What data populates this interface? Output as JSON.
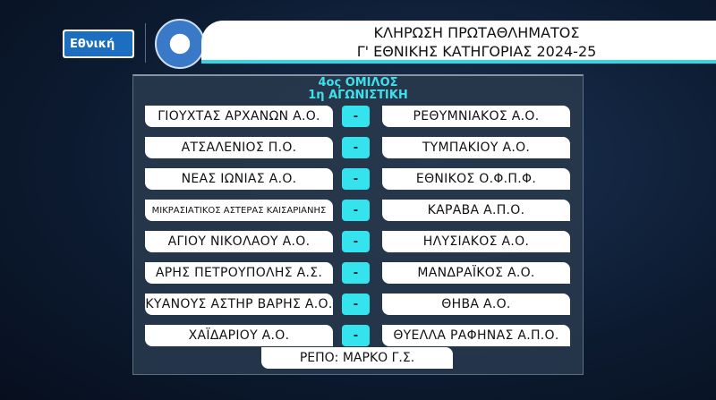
{
  "logo": {
    "label": "Εθνική"
  },
  "header": {
    "line1": "ΚΛΗΡΩΣΗ ΠΡΩΤΑΘΛΗΜΑΤΟΣ",
    "line2": "Γ' ΕΘΝΙΚΗΣ ΚΑΤΗΓΟΡΙΑΣ 2024-25"
  },
  "group": {
    "name": "4ος ΟΜΙΛΟΣ",
    "round": "1η ΑΓΩΝΙΣΤΙΚΗ"
  },
  "matches": [
    {
      "home": "ΓΙΟΥΧΤΑΣ ΑΡΧΑΝΩΝ Α.Ο.",
      "sep": "-",
      "away": "ΡΕΘΥΜΝΙΑΚΟΣ Α.Ο."
    },
    {
      "home": "ΑΤΣΑΛΕΝΙΟΣ Π.Ο.",
      "sep": "-",
      "away": "ΤΥΜΠΑΚΙΟΥ Α.Ο."
    },
    {
      "home": "ΝΕΑΣ ΙΩΝΙΑΣ Α.Ο.",
      "sep": "-",
      "away": "ΕΘΝΙΚΟΣ Ο.Φ.Π.Φ."
    },
    {
      "home": "ΜΙΚΡΑΣΙΑΤΙΚΟΣ ΑΣΤΕΡΑΣ ΚΑΙΣΑΡΙΑΝΗΣ",
      "sep": "-",
      "away": "ΚΑΡΑΒΑ Α.Π.Ο."
    },
    {
      "home": "ΑΓΙΟΥ ΝΙΚΟΛΑΟΥ Α.Ο.",
      "sep": "-",
      "away": "ΗΛΥΣΙΑΚΟΣ Α.Ο."
    },
    {
      "home": "ΑΡΗΣ ΠΕΤΡΟΥΠΟΛΗΣ Α.Σ.",
      "sep": "-",
      "away": "ΜΑΝΔΡΑΪΚΟΣ Α.Ο."
    },
    {
      "home": "ΚΥΑΝΟΥΣ ΑΣΤΗΡ ΒΑΡΗΣ Α.Ο.",
      "sep": "-",
      "away": "ΘΗΒΑ Α.Ο."
    },
    {
      "home": "ΧΑΪΔΑΡΙΟΥ Α.Ο.",
      "sep": "-",
      "away": "ΘΥΕΛΛΑ ΡΑΦΗΝΑΣ Α.Π.Ο."
    }
  ],
  "repo": "ΡΕΠΟ: ΜΑΡΚΟ Γ.Σ.",
  "colors": {
    "accent": "#35e3ef",
    "panel": "#28384c"
  }
}
